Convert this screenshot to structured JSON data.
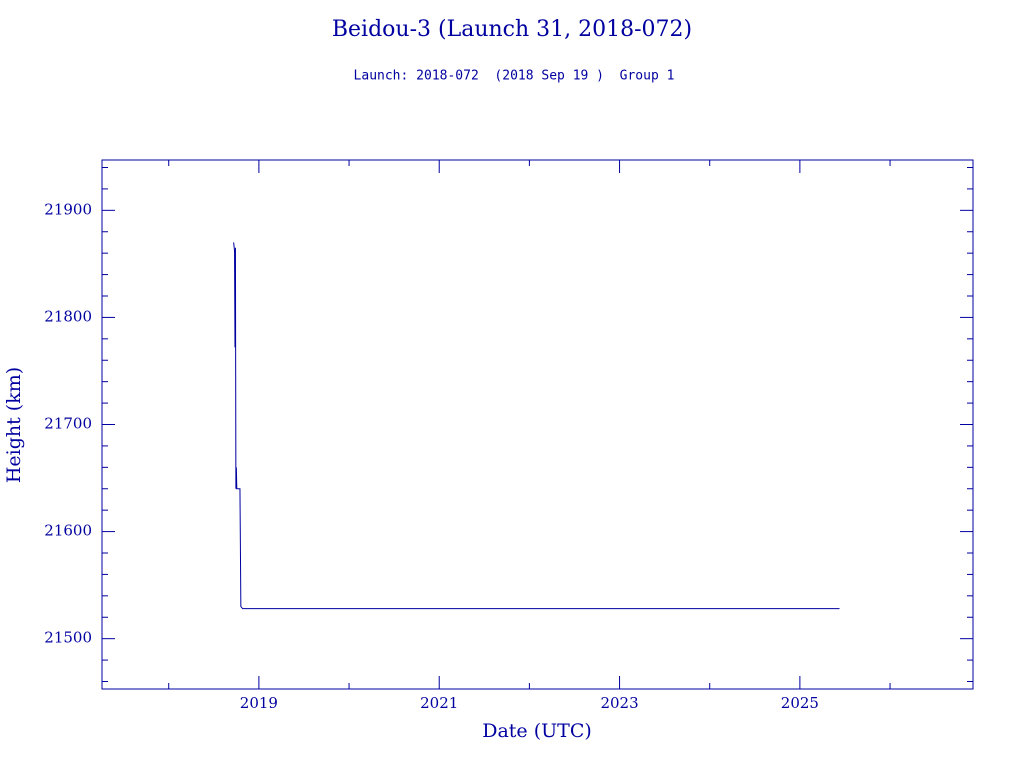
{
  "chart_data": {
    "type": "line",
    "title": "Beidou-3 (Launch 31, 2018-072)",
    "subtitle": "Launch: 2018-072  (2018 Sep 19 )  Group 1",
    "x_label": "Date (UTC)",
    "y_label": "Height (km)",
    "color": "#0000a0",
    "x": [
      2018.72,
      2018.73,
      2018.735,
      2018.74,
      2018.745,
      2018.75,
      2018.755,
      2018.79,
      2018.8,
      2018.82,
      2025.44
    ],
    "values": [
      21870,
      21862,
      21772,
      21865,
      21640,
      21660,
      21640,
      21640,
      21530,
      21528,
      21528
    ],
    "xlim": [
      2017.26,
      2026.92
    ],
    "ylim": [
      21453,
      21947
    ],
    "xticks": [
      2019,
      2021,
      2023,
      2025
    ],
    "yticks": [
      21500,
      21600,
      21700,
      21800,
      21900
    ],
    "xminorticks": [
      2018,
      2020,
      2022,
      2024,
      2026
    ],
    "yminorticks": [
      21460,
      21480,
      21520,
      21540,
      21560,
      21580,
      21620,
      21640,
      21660,
      21680,
      21720,
      21740,
      21760,
      21780,
      21820,
      21840,
      21860,
      21880,
      21920,
      21940
    ]
  }
}
